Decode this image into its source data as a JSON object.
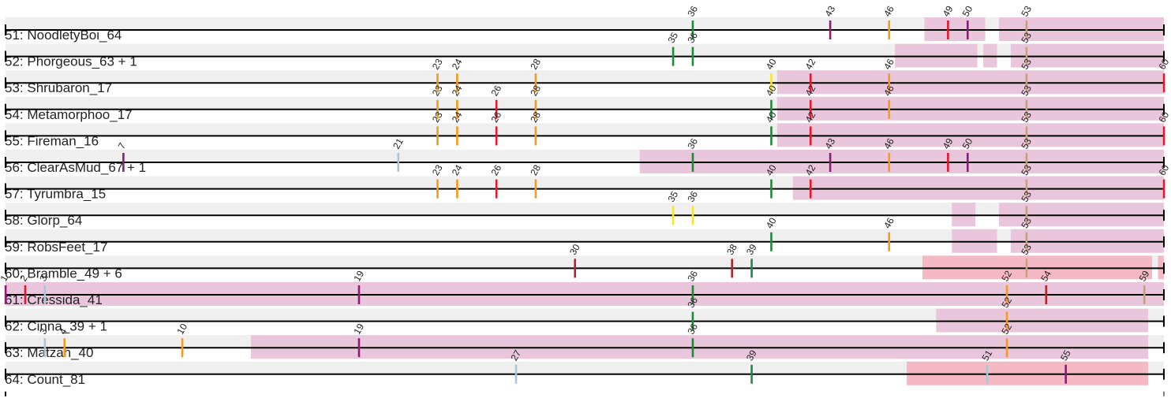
{
  "chart_data": {
    "type": "track_map",
    "x_range": [
      1,
      60
    ],
    "colors": {
      "band": "#efefef",
      "line": "#000000",
      "pink": "#e9c6db",
      "salmon": "#f4b9c5",
      "green": "#1f8a3a",
      "purple": "#8e1a7a",
      "orange": "#f59a1a",
      "red": "#e0192e",
      "tan": "#c9a07a",
      "yellow": "#f5e62a",
      "lightblue": "#a9c7d6",
      "darkred": "#b5222a"
    },
    "rows": [
      {
        "label": "51: NoodletyBoi_64",
        "segments": [
          [
            47.8,
            50.9,
            "pink"
          ],
          [
            51.6,
            60,
            "pink"
          ]
        ],
        "marks": [
          {
            "pos": 36,
            "label": "36",
            "color": "green"
          },
          {
            "pos": 43,
            "label": "43",
            "color": "purple"
          },
          {
            "pos": 46,
            "label": "46",
            "color": "orange"
          },
          {
            "pos": 49,
            "label": "49",
            "color": "red"
          },
          {
            "pos": 50,
            "label": "50",
            "color": "purple"
          },
          {
            "pos": 53,
            "label": "53",
            "color": "tan"
          }
        ]
      },
      {
        "label": "52: Phorgeous_63 + 1",
        "segments": [
          [
            46.3,
            50.5,
            "pink"
          ],
          [
            50.8,
            51.5,
            "pink"
          ],
          [
            52.2,
            60,
            "pink"
          ]
        ],
        "marks": [
          {
            "pos": 35,
            "label": "35",
            "color": "green"
          },
          {
            "pos": 36,
            "label": "36",
            "color": "green"
          },
          {
            "pos": 53,
            "label": "53",
            "color": "tan"
          }
        ]
      },
      {
        "label": "53: Shrubaron_17",
        "segments": [
          [
            40.3,
            60,
            "pink"
          ]
        ],
        "marks": [
          {
            "pos": 23,
            "label": "23",
            "color": "orange"
          },
          {
            "pos": 24,
            "label": "24",
            "color": "orange"
          },
          {
            "pos": 28,
            "label": "28",
            "color": "orange"
          },
          {
            "pos": 40,
            "label": "40",
            "color": "yellow"
          },
          {
            "pos": 42,
            "label": "42",
            "color": "red"
          },
          {
            "pos": 46,
            "label": "46",
            "color": "orange"
          },
          {
            "pos": 53,
            "label": "53",
            "color": "tan"
          },
          {
            "pos": 60,
            "label": "60",
            "color": "red"
          }
        ]
      },
      {
        "label": "54: Metamorphoo_17",
        "segments": [
          [
            40.3,
            60,
            "pink"
          ]
        ],
        "marks": [
          {
            "pos": 23,
            "label": "23",
            "color": "orange"
          },
          {
            "pos": 24,
            "label": "24",
            "color": "orange"
          },
          {
            "pos": 26,
            "label": "26",
            "color": "red"
          },
          {
            "pos": 28,
            "label": "28",
            "color": "orange"
          },
          {
            "pos": 40,
            "label": "40",
            "color": "green"
          },
          {
            "pos": 42,
            "label": "42",
            "color": "red"
          },
          {
            "pos": 46,
            "label": "46",
            "color": "orange"
          },
          {
            "pos": 53,
            "label": "53",
            "color": "tan"
          }
        ]
      },
      {
        "label": "55: Fireman_16",
        "segments": [
          [
            40.3,
            60,
            "pink"
          ]
        ],
        "marks": [
          {
            "pos": 23,
            "label": "23",
            "color": "orange"
          },
          {
            "pos": 24,
            "label": "24",
            "color": "orange"
          },
          {
            "pos": 26,
            "label": "26",
            "color": "red"
          },
          {
            "pos": 28,
            "label": "28",
            "color": "orange"
          },
          {
            "pos": 40,
            "label": "40",
            "color": "green"
          },
          {
            "pos": 42,
            "label": "42",
            "color": "red"
          },
          {
            "pos": 53,
            "label": "53",
            "color": "tan"
          },
          {
            "pos": 60,
            "label": "60",
            "color": "red"
          }
        ]
      },
      {
        "label": "56: ClearAsMud_67 + 1",
        "segments": [
          [
            33.3,
            60,
            "pink"
          ]
        ],
        "marks": [
          {
            "pos": 7,
            "label": "7",
            "color": "purple"
          },
          {
            "pos": 21,
            "label": "21",
            "color": "lightblue"
          },
          {
            "pos": 36,
            "label": "36",
            "color": "green"
          },
          {
            "pos": 43,
            "label": "43",
            "color": "purple"
          },
          {
            "pos": 46,
            "label": "46",
            "color": "orange"
          },
          {
            "pos": 49,
            "label": "49",
            "color": "red"
          },
          {
            "pos": 50,
            "label": "50",
            "color": "purple"
          },
          {
            "pos": 53,
            "label": "53",
            "color": "tan"
          }
        ]
      },
      {
        "label": "57: Tyrumbra_15",
        "segments": [
          [
            41.1,
            60,
            "pink"
          ]
        ],
        "marks": [
          {
            "pos": 23,
            "label": "23",
            "color": "orange"
          },
          {
            "pos": 24,
            "label": "24",
            "color": "orange"
          },
          {
            "pos": 26,
            "label": "26",
            "color": "red"
          },
          {
            "pos": 28,
            "label": "28",
            "color": "orange"
          },
          {
            "pos": 40,
            "label": "40",
            "color": "green"
          },
          {
            "pos": 42,
            "label": "42",
            "color": "red"
          },
          {
            "pos": 53,
            "label": "53",
            "color": "tan"
          },
          {
            "pos": 60,
            "label": "60",
            "color": "red"
          }
        ]
      },
      {
        "label": "58: Glorp_64",
        "segments": [
          [
            49.2,
            50.4,
            "pink"
          ],
          [
            51.6,
            60,
            "pink"
          ]
        ],
        "marks": [
          {
            "pos": 35,
            "label": "35",
            "color": "yellow"
          },
          {
            "pos": 36,
            "label": "36",
            "color": "yellow"
          },
          {
            "pos": 53,
            "label": "53",
            "color": "tan"
          }
        ]
      },
      {
        "label": "59: RobsFeet_17",
        "segments": [
          [
            49.2,
            51.5,
            "pink"
          ],
          [
            52.2,
            60,
            "pink"
          ]
        ],
        "marks": [
          {
            "pos": 40,
            "label": "40",
            "color": "green"
          },
          {
            "pos": 46,
            "label": "46",
            "color": "orange"
          },
          {
            "pos": 53,
            "label": "53",
            "color": "tan"
          }
        ]
      },
      {
        "label": "60: Bramble_49 + 6",
        "segments": [
          [
            47.7,
            59.4,
            "salmon"
          ],
          [
            59.7,
            60,
            "salmon"
          ]
        ],
        "marks": [
          {
            "pos": 30,
            "label": "30",
            "color": "darkred"
          },
          {
            "pos": 38,
            "label": "38",
            "color": "darkred"
          },
          {
            "pos": 39,
            "label": "39",
            "color": "green"
          },
          {
            "pos": 53,
            "label": "53",
            "color": "tan"
          }
        ]
      },
      {
        "label": "61: Cressida_41",
        "segments": [
          [
            1,
            60,
            "pink"
          ]
        ],
        "marks": [
          {
            "pos": 1,
            "label": "1",
            "color": "purple"
          },
          {
            "pos": 2,
            "label": "2",
            "color": "red"
          },
          {
            "pos": 3,
            "label": "3",
            "color": "lightblue"
          },
          {
            "pos": 19,
            "label": "19",
            "color": "purple"
          },
          {
            "pos": 36,
            "label": "36",
            "color": "green"
          },
          {
            "pos": 52,
            "label": "52",
            "color": "orange"
          },
          {
            "pos": 54,
            "label": "54",
            "color": "darkred"
          },
          {
            "pos": 59,
            "label": "59",
            "color": "tan"
          }
        ]
      },
      {
        "label": "62: Cinna_39 + 1",
        "segments": [
          [
            48.4,
            59.2,
            "pink"
          ]
        ],
        "marks": [
          {
            "pos": 36,
            "label": "36",
            "color": "green"
          },
          {
            "pos": 52,
            "label": "52",
            "color": "orange"
          }
        ]
      },
      {
        "label": "63: Matzah_40",
        "segments": [
          [
            13.5,
            59.2,
            "pink"
          ]
        ],
        "marks": [
          {
            "pos": 3,
            "label": "3",
            "color": "lightblue"
          },
          {
            "pos": 4,
            "label": "4",
            "color": "orange"
          },
          {
            "pos": 10,
            "label": "10",
            "color": "orange"
          },
          {
            "pos": 19,
            "label": "19",
            "color": "purple"
          },
          {
            "pos": 36,
            "label": "36",
            "color": "green"
          },
          {
            "pos": 52,
            "label": "52",
            "color": "orange"
          }
        ]
      },
      {
        "label": "64: Count_81",
        "segments": [
          [
            46.9,
            59.2,
            "salmon"
          ]
        ],
        "marks": [
          {
            "pos": 27,
            "label": "27",
            "color": "lightblue"
          },
          {
            "pos": 39,
            "label": "39",
            "color": "green"
          },
          {
            "pos": 51,
            "label": "51",
            "color": "lightblue"
          },
          {
            "pos": 55,
            "label": "55",
            "color": "purple"
          }
        ]
      }
    ]
  }
}
